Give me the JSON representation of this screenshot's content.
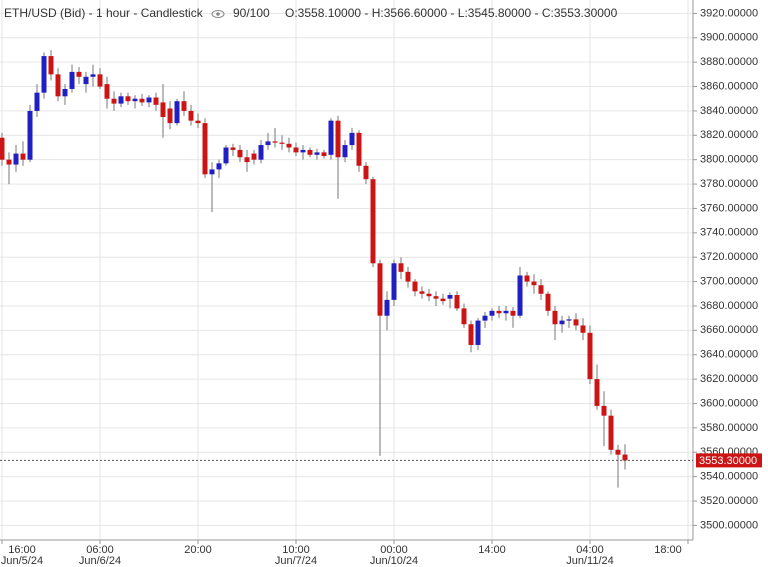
{
  "chart_data": {
    "type": "candlestick",
    "title": "ETH/USD (Bid) - 1 hour - Candlestick",
    "zoom_label": "90/100",
    "ohlc_label": "O:3558.10000 - H:3566.60000 - L:3545.80000 - C:3553.30000",
    "categories": [
      "16:00",
      null,
      null,
      null,
      null,
      null,
      null,
      null,
      null,
      null,
      null,
      null,
      null,
      null,
      "06:00",
      null,
      null,
      null,
      null,
      null,
      null,
      null,
      null,
      null,
      null,
      null,
      null,
      null,
      "20:00",
      null,
      null,
      null,
      null,
      null,
      null,
      null,
      null,
      null,
      null,
      null,
      null,
      null,
      "10:00",
      null,
      null,
      null,
      null,
      null,
      null,
      null,
      null,
      null,
      null,
      null,
      null,
      null,
      "00:00",
      null,
      null,
      null,
      null,
      null,
      null,
      null,
      null,
      null,
      null,
      null,
      null,
      null,
      "14:00",
      null,
      null,
      null,
      null,
      null,
      null,
      null,
      null,
      null,
      null,
      null,
      null,
      null,
      "04:00",
      null,
      null,
      null,
      null,
      null,
      null,
      null,
      null,
      null,
      null,
      null,
      null,
      null,
      "18:00"
    ],
    "dates": [
      "Jun/5/24",
      null,
      null,
      null,
      null,
      null,
      null,
      null,
      null,
      null,
      null,
      null,
      null,
      null,
      "Jun/6/24",
      null,
      null,
      null,
      null,
      null,
      null,
      null,
      null,
      null,
      null,
      null,
      null,
      null,
      null,
      null,
      null,
      null,
      null,
      null,
      null,
      null,
      null,
      null,
      null,
      null,
      null,
      null,
      "Jun/7/24",
      null,
      null,
      null,
      null,
      null,
      null,
      null,
      null,
      null,
      null,
      null,
      null,
      null,
      "Jun/10/24",
      null,
      null,
      null,
      null,
      null,
      null,
      null,
      null,
      null,
      null,
      null,
      null,
      null,
      null,
      null,
      null,
      null,
      null,
      null,
      null,
      null,
      null,
      null,
      null,
      null,
      null,
      null,
      "Jun/11/24",
      null,
      null,
      null,
      null,
      null,
      null,
      null,
      null,
      null,
      null,
      null,
      null,
      null,
      null
    ],
    "open": [
      3818,
      3800,
      3796,
      3805,
      3800,
      3840,
      3855,
      3885,
      3870,
      3852,
      3858,
      3872,
      3862,
      3868,
      3870,
      3862,
      3850,
      3846,
      3852,
      3848,
      3850,
      3847,
      3851,
      3847,
      3842,
      3830,
      3848,
      3840,
      3832,
      3830,
      3788,
      3792,
      3797,
      3810,
      3808,
      3802,
      3805,
      3800,
      3812,
      3815,
      3814,
      3813,
      3810,
      3806,
      3808,
      3804,
      3806,
      3804,
      3832,
      3802,
      3812,
      3822,
      3795,
      3784,
      3715,
      3672,
      3685,
      3715,
      3708,
      3700,
      3692,
      3690,
      3688,
      3686,
      3686,
      3689,
      3678,
      3665,
      3648,
      3668,
      3672,
      3676,
      3674,
      3676,
      3672,
      3705,
      3700,
      3697,
      3690,
      3676,
      3665,
      3668,
      3669,
      3664,
      3658,
      3620,
      3598,
      3590,
      3562,
      3558.1,
      null,
      null,
      null,
      null,
      null,
      null,
      null,
      null,
      null
    ],
    "high": [
      3822,
      3806,
      3812,
      3815,
      3845,
      3862,
      3888,
      3890,
      3875,
      3862,
      3878,
      3876,
      3872,
      3878,
      3875,
      3868,
      3856,
      3855,
      3855,
      3853,
      3854,
      3853,
      3855,
      3862,
      3848,
      3850,
      3856,
      3845,
      3838,
      3834,
      3798,
      3800,
      3812,
      3813,
      3812,
      3808,
      3808,
      3816,
      3822,
      3826,
      3820,
      3818,
      3814,
      3812,
      3810,
      3809,
      3808,
      3834,
      3836,
      3816,
      3826,
      3824,
      3798,
      3786,
      3718,
      3692,
      3718,
      3720,
      3712,
      3702,
      3696,
      3694,
      3692,
      3690,
      3691,
      3692,
      3682,
      3668,
      3670,
      3675,
      3678,
      3680,
      3680,
      3679,
      3712,
      3708,
      3706,
      3702,
      3692,
      3680,
      3672,
      3672,
      3674,
      3670,
      3664,
      3632,
      3610,
      3595,
      3566,
      3566.6,
      null,
      null,
      null,
      null,
      null,
      null,
      null,
      null,
      null
    ],
    "low": [
      3795,
      3780,
      3790,
      3795,
      3798,
      3835,
      3850,
      3865,
      3848,
      3845,
      3855,
      3862,
      3855,
      3860,
      3858,
      3842,
      3840,
      3843,
      3845,
      3842,
      3844,
      3843,
      3840,
      3818,
      3825,
      3828,
      3836,
      3828,
      3826,
      3785,
      3757,
      3785,
      3795,
      3803,
      3798,
      3790,
      3796,
      3797,
      3808,
      3810,
      3808,
      3806,
      3803,
      3800,
      3802,
      3800,
      3801,
      3800,
      3768,
      3798,
      3808,
      3790,
      3780,
      3712,
      3557,
      3660,
      3680,
      3702,
      3695,
      3688,
      3686,
      3684,
      3680,
      3681,
      3678,
      3676,
      3662,
      3642,
      3644,
      3662,
      3668,
      3670,
      3668,
      3662,
      3670,
      3696,
      3690,
      3685,
      3672,
      3652,
      3658,
      3662,
      3660,
      3652,
      3616,
      3595,
      3565,
      3558,
      3531,
      3545.8,
      null,
      null,
      null,
      null,
      null,
      null,
      null,
      null,
      null
    ],
    "close": [
      3800,
      3796,
      3805,
      3800,
      3840,
      3855,
      3885,
      3870,
      3852,
      3858,
      3872,
      3868,
      3868,
      3870,
      3860,
      3850,
      3846,
      3852,
      3848,
      3850,
      3847,
      3851,
      3845,
      3835,
      3830,
      3848,
      3840,
      3832,
      3830,
      3788,
      3792,
      3797,
      3810,
      3808,
      3802,
      3798,
      3800,
      3812,
      3815,
      3814,
      3813,
      3810,
      3806,
      3808,
      3804,
      3806,
      3803,
      3832,
      3802,
      3812,
      3822,
      3795,
      3784,
      3715,
      3672,
      3685,
      3715,
      3708,
      3700,
      3692,
      3690,
      3688,
      3686,
      3684,
      3689,
      3678,
      3665,
      3648,
      3668,
      3672,
      3676,
      3674,
      3676,
      3672,
      3705,
      3700,
      3697,
      3690,
      3676,
      3665,
      3668,
      3669,
      3664,
      3658,
      3620,
      3598,
      3590,
      3562,
      3558,
      3553.3,
      null,
      null,
      null,
      null,
      null,
      null,
      null,
      null,
      null
    ],
    "up_color": "#1f1fc4",
    "down_color": "#cc1414",
    "ylim": [
      3488,
      3931
    ],
    "yticks": [
      {
        "value": 3500,
        "label": "3500.00000"
      },
      {
        "value": 3520,
        "label": "3520.00000"
      },
      {
        "value": 3540,
        "label": "3540.00000"
      },
      {
        "value": 3560,
        "label": "3560.00000"
      },
      {
        "value": 3580,
        "label": "3580.00000"
      },
      {
        "value": 3600,
        "label": "3600.00000"
      },
      {
        "value": 3620,
        "label": "3620.00000"
      },
      {
        "value": 3640,
        "label": "3640.00000"
      },
      {
        "value": 3660,
        "label": "3660.00000"
      },
      {
        "value": 3680,
        "label": "3680.00000"
      },
      {
        "value": 3700,
        "label": "3700.00000"
      },
      {
        "value": 3720,
        "label": "3720.00000"
      },
      {
        "value": 3740,
        "label": "3740.00000"
      },
      {
        "value": 3760,
        "label": "3760.00000"
      },
      {
        "value": 3780,
        "label": "3780.00000"
      },
      {
        "value": 3800,
        "label": "3800.00000"
      },
      {
        "value": 3820,
        "label": "3820.00000"
      },
      {
        "value": 3840,
        "label": "3840.00000"
      },
      {
        "value": 3860,
        "label": "3860.00000"
      },
      {
        "value": 3880,
        "label": "3880.00000"
      },
      {
        "value": 3900,
        "label": "3900.00000"
      },
      {
        "value": 3920,
        "label": "3920.00000"
      }
    ],
    "last_price": {
      "value": 3553.3,
      "label": "3553.30000"
    },
    "grid": true
  }
}
